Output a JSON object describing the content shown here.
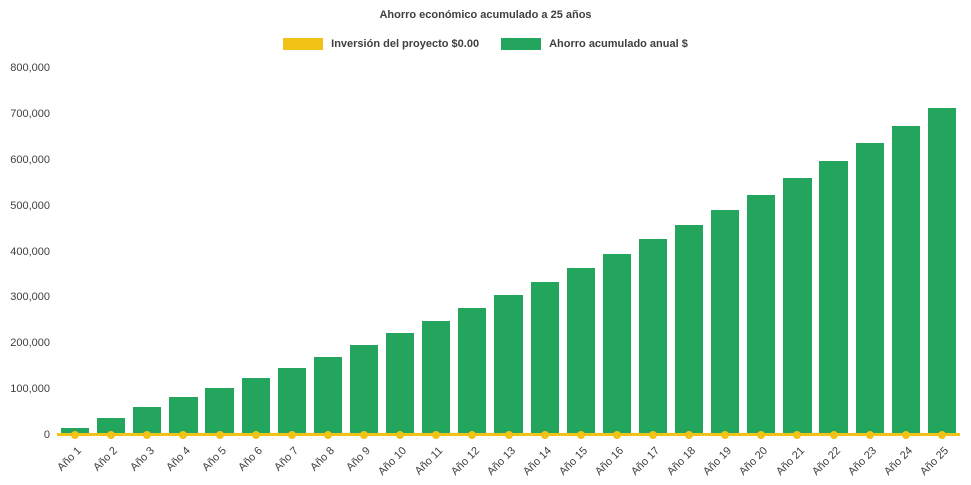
{
  "header": {
    "title": "Ahorro económico acumulado a 25 años"
  },
  "legend": [
    {
      "label": "Inversión del proyecto $0.00",
      "color": "#f2c216"
    },
    {
      "label": "Ahorro acumulado anual $",
      "color": "#23a55d"
    }
  ],
  "chart_data": {
    "type": "bar",
    "title": "Ahorro económico acumulado a 25 años",
    "categories": [
      "Año 1",
      "Año 2",
      "Año 3",
      "Año 4",
      "Año 5",
      "Año 6",
      "Año 7",
      "Año 8",
      "Año 9",
      "Año 10",
      "Año 11",
      "Año 12",
      "Año 13",
      "Año 14",
      "Año 15",
      "Año 16",
      "Año 17",
      "Año 18",
      "Año 19",
      "Año 20",
      "Año 21",
      "Año 22",
      "Año 23",
      "Año 24",
      "Año 25"
    ],
    "series": [
      {
        "name": "Inversión del proyecto $0.00",
        "type": "line",
        "color": "#f2c216",
        "values": [
          0,
          0,
          0,
          0,
          0,
          0,
          0,
          0,
          0,
          0,
          0,
          0,
          0,
          0,
          0,
          0,
          0,
          0,
          0,
          0,
          0,
          0,
          0,
          0,
          0
        ]
      },
      {
        "name": "Ahorro acumulado anual $",
        "type": "bar",
        "color": "#23a55d",
        "values": [
          15000,
          38000,
          60000,
          82000,
          103000,
          124000,
          146000,
          170000,
          196000,
          222000,
          249000,
          277000,
          305000,
          334000,
          364000,
          395000,
          427000,
          458000,
          490000,
          524000,
          561000,
          598000,
          636000,
          673000,
          712000
        ]
      }
    ],
    "ylim": [
      0,
      800000
    ],
    "ytick_interval": 100000,
    "yticks": [
      "0",
      "100,000",
      "200,000",
      "300,000",
      "400,000",
      "500,000",
      "600,000",
      "700,000",
      "800,000"
    ],
    "xlabel": "",
    "ylabel": "",
    "legend_position": "top",
    "grid": false
  }
}
